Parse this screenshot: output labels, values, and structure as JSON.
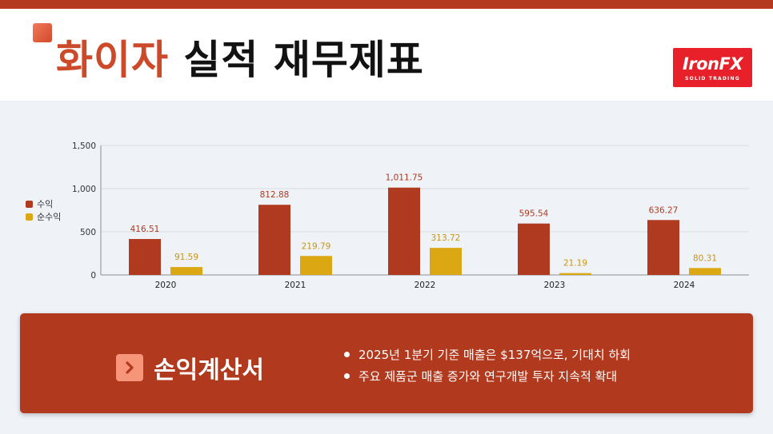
{
  "header": {
    "title_highlight": "화이자",
    "title_rest": "실적 재무제표",
    "logo_brand": "IronFX",
    "logo_tagline": "SOLID TRADING",
    "logo_icon": "ironfx-logo"
  },
  "colors": {
    "accent": "#b5391e",
    "series_revenue": "#b03a1f",
    "series_net": "#dba713",
    "panel": "#b0391e"
  },
  "chart_data": {
    "type": "bar",
    "categories": [
      "2020",
      "2021",
      "2022",
      "2023",
      "2024"
    ],
    "series": [
      {
        "name": "수익",
        "values": [
          416.51,
          812.88,
          1011.75,
          595.54,
          636.27
        ],
        "labels": [
          "416.51",
          "812.88",
          "1,011.75",
          "595.54",
          "636.27"
        ]
      },
      {
        "name": "순수익",
        "values": [
          91.59,
          219.79,
          313.72,
          21.19,
          80.31
        ],
        "labels": [
          "91.59",
          "219.79",
          "313.72",
          "21.19",
          "80.31"
        ]
      }
    ],
    "ylim": [
      0,
      1500
    ],
    "yticks": [
      0,
      500,
      1000,
      1500
    ],
    "ytick_labels": [
      "0",
      "500",
      "1,000",
      "1,500"
    ],
    "grid": true,
    "legend_position": "left"
  },
  "panel": {
    "title": "손익계산서",
    "icon": "chevron-right-icon",
    "bullets": [
      "2025년 1분기 기준 매출은 $137억으로, 기대치 하회",
      "주요 제품군 매출 증가와 연구개발 투자 지속적 확대"
    ]
  }
}
